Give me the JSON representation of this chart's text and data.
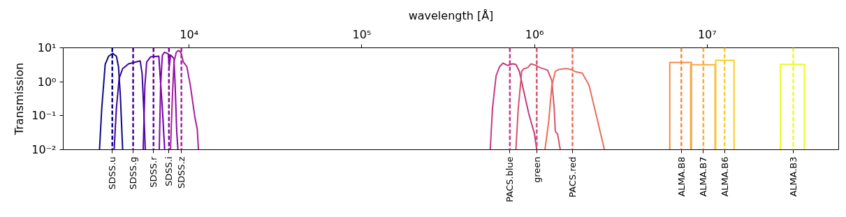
{
  "chart_data": {
    "type": "line",
    "ylabel": "Transmission",
    "xlabel": "wavelength [Å]",
    "log": "xy",
    "grid": false,
    "line_style": "solid",
    "xlim": [
      1866,
      57700000
    ],
    "ylim": [
      0.01,
      10
    ],
    "yticks": [
      {
        "value": 0.01,
        "label": "10⁻²"
      },
      {
        "value": 0.1,
        "label": "10⁻¹"
      },
      {
        "value": 1,
        "label": "10⁰"
      },
      {
        "value": 10,
        "label": "10¹"
      }
    ],
    "xticks": [
      {
        "value": 10000,
        "label": "10⁴"
      },
      {
        "value": 100000,
        "label": "10⁵"
      },
      {
        "value": 1000000,
        "label": "10⁶"
      },
      {
        "value": 10000000,
        "label": "10⁷"
      }
    ],
    "series": [
      {
        "color": "#0d0887",
        "x": [
          3027,
          3119,
          3266,
          3420,
          3608,
          3791,
          3899,
          4000,
          4121
        ],
        "values": [
          0.01,
          0.164,
          3.26,
          5.67,
          6.85,
          5.67,
          2.79,
          0.366,
          0.01
        ]
      },
      {
        "color": "#3e049c",
        "x": [
          3679,
          3791,
          3936,
          4121,
          4457,
          5207,
          5342,
          5458,
          5572
        ],
        "values": [
          0.01,
          0.164,
          1.27,
          2.42,
          3.37,
          4.13,
          1.74,
          0.164,
          0.01
        ]
      },
      {
        "color": "#6300a7",
        "x": [
          5420,
          5546,
          5680,
          5987,
          6677,
          6780,
          6998,
          7216
        ],
        "values": [
          0.01,
          0.789,
          3.83,
          5.41,
          5.67,
          1.74,
          0.164,
          0.01
        ]
      },
      {
        "color": "#8606a6",
        "x": [
          6714,
          6839,
          6998,
          7216,
          7565,
          7680,
          7800,
          8170,
          8299,
          8474,
          8613
        ],
        "values": [
          0.01,
          0.789,
          6.14,
          7.43,
          6.62,
          2.79,
          6.14,
          4.85,
          0.789,
          0.034,
          0.01
        ]
      },
      {
        "color": "#a62098",
        "x": [
          7800,
          7998,
          8170,
          8430,
          8690,
          8970,
          9253,
          9700,
          10160,
          10810,
          11150,
          11320
        ],
        "values": [
          0.01,
          0.36,
          3.83,
          7.43,
          8.4,
          7.18,
          3.83,
          2.79,
          0.789,
          0.087,
          0.04,
          0.01
        ]
      },
      {
        "color": "#c03a83",
        "x": [
          554000,
          571000,
          599000,
          628000,
          657000,
          700000,
          744000,
          780000,
          817000,
          869000,
          925000,
          1000000,
          1030000
        ],
        "values": [
          0.01,
          0.164,
          1.49,
          2.79,
          3.53,
          3.02,
          3.37,
          3.26,
          2.03,
          0.49,
          0.119,
          0.029,
          0.01
        ]
      },
      {
        "color": "#d5546e",
        "x": [
          780000,
          805000,
          843000,
          869000,
          911000,
          955000,
          1020000,
          1080000,
          1190000,
          1260000,
          1300000,
          1320000,
          1360000,
          1410000
        ],
        "values": [
          0.01,
          0.164,
          2.03,
          2.45,
          2.58,
          3.37,
          3.02,
          2.58,
          2.2,
          1.08,
          0.164,
          0.034,
          0.029,
          0.01
        ]
      },
      {
        "color": "#e76f5a",
        "x": [
          1150000,
          1210000,
          1260000,
          1320000,
          1390000,
          1520000,
          1620000,
          1720000,
          1890000,
          2070000,
          2280000,
          2540000
        ],
        "values": [
          0.01,
          0.074,
          0.789,
          2.03,
          2.31,
          2.45,
          2.31,
          1.98,
          1.8,
          0.789,
          0.102,
          0.01
        ]
      },
      {
        "color": "#f58c46",
        "x": [
          6070000,
          6070000,
          8090000,
          8090000
        ],
        "values": [
          0.01,
          3.7,
          3.7,
          0.01
        ]
      },
      {
        "color": "#fdab33",
        "x": [
          8020000,
          8020000,
          11100000,
          11100000
        ],
        "values": [
          0.01,
          3.17,
          3.17,
          0.01
        ]
      },
      {
        "color": "#fccd25",
        "x": [
          11200000,
          11200000,
          14300000,
          14300000
        ],
        "values": [
          0.01,
          4.27,
          4.27,
          0.01
        ]
      },
      {
        "color": "#f0f921",
        "x": [
          26500000,
          26500000,
          36500000,
          36500000
        ],
        "values": [
          0.01,
          3.26,
          3.26,
          0.01
        ]
      }
    ],
    "ref_lines": [
      {
        "axis": "x",
        "value": 3590,
        "label": "SDSS.u",
        "color": "#0d0887",
        "line_style": "dashed"
      },
      {
        "axis": "x",
        "value": 4740,
        "label": "SDSS.g",
        "color": "#3e049c",
        "line_style": "dashed"
      },
      {
        "axis": "x",
        "value": 6220,
        "label": "SDSS.r",
        "color": "#6300a7",
        "line_style": "dashed"
      },
      {
        "axis": "x",
        "value": 7640,
        "label": "SDSS.i",
        "color": "#8606a6",
        "line_style": "dashed"
      },
      {
        "axis": "x",
        "value": 9020,
        "label": "SDSS.z",
        "color": "#a62098",
        "line_style": "dashed"
      },
      {
        "axis": "x",
        "value": 720000,
        "label": "PACS.blue",
        "color": "#c03a83",
        "line_style": "dashed"
      },
      {
        "axis": "x",
        "value": 1030000,
        "label": "green",
        "color": "#d5546e",
        "line_style": "dashed"
      },
      {
        "axis": "x",
        "value": 1660000,
        "label": "PACS.red",
        "color": "#e76f5a",
        "line_style": "dashed"
      },
      {
        "axis": "x",
        "value": 7080000,
        "label": "ALMA.B8",
        "color": "#f58c46",
        "line_style": "dashed"
      },
      {
        "axis": "x",
        "value": 9500000,
        "label": "ALMA.B7",
        "color": "#fdab33",
        "line_style": "dashed"
      },
      {
        "axis": "x",
        "value": 12600000,
        "label": "ALMA.B6",
        "color": "#fccd25",
        "line_style": "dashed"
      },
      {
        "axis": "x",
        "value": 31500000,
        "label": "ALMA.B3",
        "color": "#f0f921",
        "line_style": "dashed"
      }
    ]
  }
}
